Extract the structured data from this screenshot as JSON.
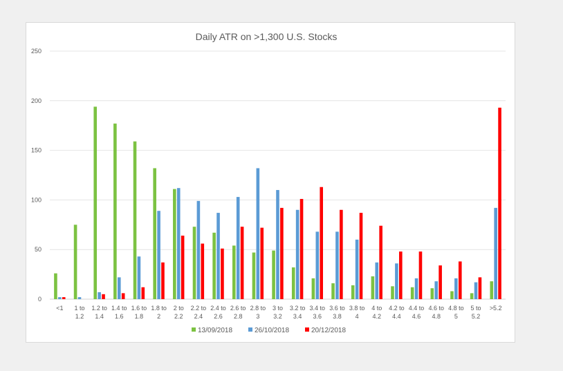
{
  "chart_data": {
    "type": "bar",
    "title": "Daily ATR on >1,300 U.S. Stocks",
    "xlabel": "",
    "ylabel": "",
    "ylim": [
      0,
      250
    ],
    "yticks": [
      "0",
      "50",
      "100",
      "150",
      "200",
      "250"
    ],
    "grid": true,
    "legend_position": "bottom",
    "categories": [
      [
        "<1"
      ],
      [
        "1 to",
        "1.2"
      ],
      [
        "1.2 to",
        "1.4"
      ],
      [
        "1.4 to",
        "1.6"
      ],
      [
        "1.6 to",
        "1.8"
      ],
      [
        "1.8 to",
        "2"
      ],
      [
        "2 to",
        "2.2"
      ],
      [
        "2.2 to",
        "2.4"
      ],
      [
        "2.4 to",
        "2.6"
      ],
      [
        "2.6 to",
        "2.8"
      ],
      [
        "2.8 to",
        "3"
      ],
      [
        "3 to",
        "3.2"
      ],
      [
        "3.2 to",
        "3.4"
      ],
      [
        "3.4 to",
        "3.6"
      ],
      [
        "3.6 to",
        "3.8"
      ],
      [
        "3.8 to",
        "4"
      ],
      [
        "4 to",
        "4.2"
      ],
      [
        "4.2 to",
        "4.4"
      ],
      [
        "4.4 to",
        "4.6"
      ],
      [
        "4.6 to",
        "4.8"
      ],
      [
        "4.8 to",
        "5"
      ],
      [
        "5 to",
        "5.2"
      ],
      [
        ">5.2"
      ]
    ],
    "series": [
      {
        "name": "13/09/2018",
        "color": "#7cc242",
        "values": [
          26,
          75,
          194,
          177,
          159,
          132,
          111,
          73,
          67,
          54,
          47,
          49,
          32,
          21,
          16,
          14,
          23,
          13,
          12,
          11,
          8,
          6,
          18
        ]
      },
      {
        "name": "26/10/2018",
        "color": "#5b9bd5",
        "values": [
          2,
          2,
          7,
          22,
          43,
          89,
          112,
          99,
          87,
          103,
          132,
          110,
          90,
          68,
          68,
          60,
          37,
          36,
          21,
          18,
          21,
          17,
          92
        ]
      },
      {
        "name": "20/12/2018",
        "color": "#ff0000",
        "values": [
          2,
          0,
          5,
          6,
          12,
          37,
          64,
          56,
          51,
          73,
          72,
          92,
          101,
          113,
          90,
          87,
          74,
          48,
          48,
          34,
          38,
          22,
          193
        ]
      }
    ]
  }
}
